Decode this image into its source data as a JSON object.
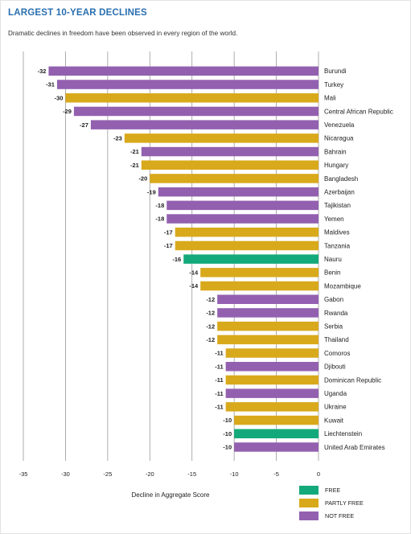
{
  "title": "LARGEST 10-YEAR DECLINES",
  "subtitle": "Dramatic declines in freedom have been observed in every region of the world.",
  "colors": {
    "free": "#14a97a",
    "partly_free": "#d9a91c",
    "not_free": "#9360b0",
    "grid": "#999999",
    "text": "#222222"
  },
  "legend": [
    {
      "label": "FREE",
      "status": "free"
    },
    {
      "label": "PARTLY FREE",
      "status": "partly_free"
    },
    {
      "label": "NOT FREE",
      "status": "not_free"
    }
  ],
  "chart_data": {
    "type": "bar",
    "orientation": "horizontal",
    "title": "LARGEST 10-YEAR DECLINES",
    "xlabel": "Decline in Aggregate Score",
    "ylabel": "",
    "xlim": [
      -35,
      0
    ],
    "xticks": [
      -35,
      -30,
      -25,
      -20,
      -15,
      -10,
      -5,
      0
    ],
    "grid": true,
    "legend_position": "bottom-right",
    "categories": [
      "Burundi",
      "Turkey",
      "Mali",
      "Central African Republic",
      "Venezuela",
      "Nicaragua",
      "Bahrain",
      "Hungary",
      "Bangladesh",
      "Azerbaijan",
      "Tajikistan",
      "Yemen",
      "Maldives",
      "Tanzania",
      "Nauru",
      "Benin",
      "Mozambique",
      "Gabon",
      "Rwanda",
      "Serbia",
      "Thailand",
      "Comoros",
      "Djibouti",
      "Dominican Republic",
      "Uganda",
      "Ukraine",
      "Kuwait",
      "Liechtenstein",
      "United Arab Emirates"
    ],
    "values": [
      -32,
      -31,
      -30,
      -29,
      -27,
      -23,
      -21,
      -21,
      -20,
      -19,
      -18,
      -18,
      -17,
      -17,
      -16,
      -14,
      -14,
      -12,
      -12,
      -12,
      -12,
      -11,
      -11,
      -11,
      -11,
      -11,
      -10,
      -10,
      -10
    ],
    "status": [
      "not_free",
      "not_free",
      "partly_free",
      "not_free",
      "not_free",
      "partly_free",
      "not_free",
      "partly_free",
      "partly_free",
      "not_free",
      "not_free",
      "not_free",
      "partly_free",
      "partly_free",
      "free",
      "partly_free",
      "partly_free",
      "not_free",
      "not_free",
      "partly_free",
      "partly_free",
      "partly_free",
      "not_free",
      "partly_free",
      "not_free",
      "partly_free",
      "partly_free",
      "free",
      "not_free"
    ]
  }
}
